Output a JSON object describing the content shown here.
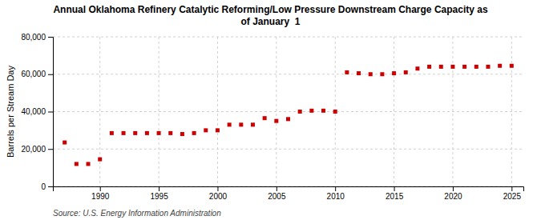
{
  "chart_data": {
    "type": "scatter",
    "title": "Annual Oklahoma Refinery Catalytic Reforming/Low Pressure Downstream Charge Capacity as\nof January  1",
    "y_label": "Barrels per Stream Day",
    "source": "Source: U.S. Energy Information Administration",
    "x": [
      1987,
      1988,
      1989,
      1990,
      1991,
      1992,
      1993,
      1994,
      1995,
      1996,
      1997,
      1998,
      1999,
      2000,
      2001,
      2002,
      2003,
      2004,
      2005,
      2006,
      2007,
      2008,
      2009,
      2010,
      2011,
      2012,
      2013,
      2014,
      2015,
      2016,
      2017,
      2018,
      2019,
      2020,
      2021,
      2022,
      2023,
      2024,
      2025
    ],
    "values": [
      23500,
      12000,
      12000,
      14500,
      28500,
      28500,
      28500,
      28500,
      28500,
      28500,
      28000,
      28500,
      30000,
      30000,
      33000,
      33000,
      33000,
      36500,
      35000,
      36000,
      40000,
      40500,
      40500,
      40000,
      61000,
      60500,
      60000,
      60000,
      60500,
      61000,
      63000,
      64000,
      64000,
      64000,
      64000,
      64000,
      64000,
      64500,
      64500
    ],
    "color": "#cc0000",
    "marker": "square",
    "xlim": [
      1986,
      2026
    ],
    "xticks": [
      1990,
      1995,
      2000,
      2005,
      2010,
      2015,
      2020,
      2025
    ],
    "ylim": [
      0,
      80000
    ],
    "yticks": [
      0,
      {
        "value": 20000,
        "label": "20,000"
      },
      {
        "value": 40000,
        "label": "40,000"
      },
      {
        "value": 60000,
        "label": "60,000"
      },
      {
        "value": 80000,
        "label": "80,000"
      }
    ],
    "grid": true
  }
}
